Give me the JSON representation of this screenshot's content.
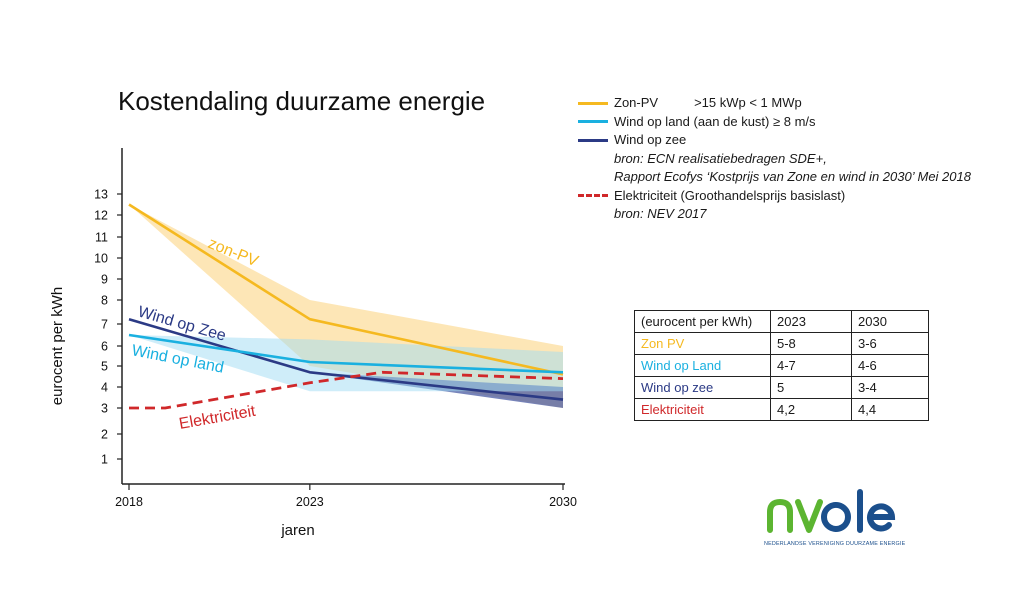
{
  "chart_data": {
    "type": "line",
    "title": "Kostendaling duurzame energie",
    "xlabel": "jaren",
    "ylabel": "eurocent per kWh",
    "x_ticks": [
      "2018",
      "2023",
      "2030"
    ],
    "y_ticks": [
      "1",
      "2",
      "3",
      "4",
      "5",
      "6",
      "7",
      "8",
      "9",
      "10",
      "11",
      "12",
      "13"
    ],
    "xlim": [
      2018,
      2030
    ],
    "ylim": [
      0,
      14
    ],
    "y_scale": "compressed-low (ticks unevenly spaced as printed)",
    "series": [
      {
        "name": "zon-PV",
        "color": "#f5b920",
        "band_color": "#fbd27a",
        "x": [
          2018,
          2023,
          2030
        ],
        "values": [
          12.5,
          7.2,
          4.6
        ],
        "band_low": [
          12.5,
          5.0,
          3.0
        ],
        "band_high": [
          12.5,
          8.0,
          6.0
        ]
      },
      {
        "name": "Wind op Zee",
        "color": "#2b3a85",
        "band_color": "#4a5ba3",
        "x": [
          2018,
          2023,
          2030
        ],
        "values": [
          7.2,
          4.7,
          3.4
        ],
        "band_low": [
          7.2,
          4.7,
          3.0
        ],
        "band_high": [
          7.2,
          4.7,
          4.0
        ]
      },
      {
        "name": "Wind op land",
        "color": "#1ab0e0",
        "band_color": "#9fdcf3",
        "x": [
          2018,
          2023,
          2030
        ],
        "values": [
          6.5,
          5.2,
          4.7
        ],
        "band_low": [
          6.5,
          3.8,
          3.8
        ],
        "band_high": [
          6.5,
          6.3,
          5.7
        ]
      },
      {
        "name": "Elektriciteit",
        "color": "#d0282a",
        "dashed": true,
        "x": [
          2018,
          2019,
          2023,
          2025,
          2030
        ],
        "values": [
          3.0,
          3.0,
          4.2,
          4.7,
          4.4
        ]
      }
    ],
    "annotations": [
      {
        "text": "zon-PV",
        "color": "#f5b920"
      },
      {
        "text": "Wind op Zee",
        "color": "#2b3a85"
      },
      {
        "text": "Wind op land",
        "color": "#1ab0e0"
      },
      {
        "text": "Elektriciteit",
        "color": "#d0282a"
      }
    ],
    "grid": false
  },
  "legend": {
    "items": [
      {
        "label": "Zon-PV",
        "extra": ">15 kWp < 1 MWp",
        "color": "#f5b920"
      },
      {
        "label": "Wind op land (aan de kust) ≥ 8 m/s",
        "color": "#1ab0e0"
      },
      {
        "label": "Wind op zee",
        "color": "#2b3a85"
      }
    ],
    "source1": "bron: ECN realisatiebedragen SDE+,",
    "source2": "Rapport Ecofys ‘Kostprijs van Zone en wind in 2030’ Mei 2018",
    "elec": {
      "label": "Elektriciteit (Groothandelsprijs basislast)",
      "color": "#d0282a"
    },
    "source3": "bron: NEV 2017"
  },
  "table": {
    "header": [
      "(eurocent per kWh)",
      "2023",
      "2030"
    ],
    "rows": [
      {
        "label": "Zon PV",
        "color": "#f5b920",
        "v2023": "5-8",
        "v2030": "3-6"
      },
      {
        "label": "Wind op Land",
        "color": "#1ab0e0",
        "v2023": "4-7",
        "v2030": "4-6"
      },
      {
        "label": "Wind op zee",
        "color": "#2b3a85",
        "v2023": "5",
        "v2030": "3-4"
      },
      {
        "label": "Elektriciteit",
        "color": "#d0282a",
        "v2023": "4,2",
        "v2030": "4,4"
      }
    ]
  },
  "logo": {
    "text": "nvde",
    "subtitle": "NEDERLANDSE VERENIGING DUURZAME ENERGIE",
    "green": "#5cb531",
    "blue": "#1b4f8c"
  }
}
